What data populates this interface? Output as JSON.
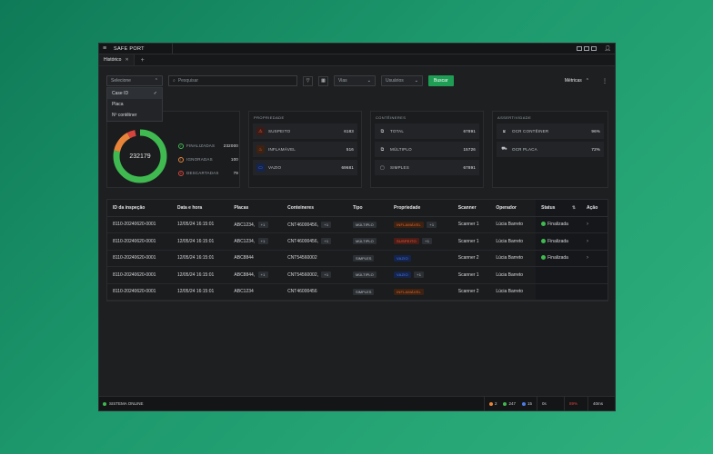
{
  "app": {
    "title": "SAFE PORT"
  },
  "tabs": [
    {
      "label": "Histórico"
    }
  ],
  "toolbar": {
    "select_filter": "Selecione",
    "search_placeholder": "Pesquisar",
    "vias": "Vias",
    "usuarios": "Usuários",
    "buscar": "Buscar",
    "metricas": "Métricas"
  },
  "dropdown": {
    "options": [
      "Case ID",
      "Placa",
      "Nº contêiner"
    ]
  },
  "summary": {
    "total": "232179",
    "finalizadas": {
      "label": "FINALIZADAS",
      "value": "232000"
    },
    "ignoradas": {
      "label": "IGNORADAS",
      "value": "100"
    },
    "descartadas": {
      "label": "DESCARTADAS",
      "value": "79"
    }
  },
  "propriedade": {
    "title": "PROPRIEDADE",
    "rows": [
      {
        "label": "SUSPEITO",
        "value": "6183"
      },
      {
        "label": "INFLAMÁVEL",
        "value": "516"
      },
      {
        "label": "VAZIO",
        "value": "69681"
      }
    ]
  },
  "conteineres": {
    "title": "CONTÊINERES",
    "rows": [
      {
        "label": "TOTAL",
        "value": "67891"
      },
      {
        "label": "MÚLTIPLO",
        "value": "15726"
      },
      {
        "label": "SIMPLES",
        "value": "67891"
      }
    ]
  },
  "assertividade": {
    "title": "ASSERTIVIDADE",
    "rows": [
      {
        "label": "OCR CONTÊINER",
        "value": "96%"
      },
      {
        "label": "OCR PLACA",
        "value": "72%"
      }
    ]
  },
  "table": {
    "headers": [
      "ID da inspeção",
      "Data e hora",
      "Placas",
      "Conteineres",
      "Tipo",
      "Propriedade",
      "Scanner",
      "Operador",
      "Status",
      "Ação"
    ],
    "rows": [
      {
        "id": "8110-20240620-0001",
        "date": "12/05/24 16:15:01",
        "placa": "ABC1234,",
        "placa_extra": "+1",
        "cont": "CNT46000456,",
        "cont_extra": "+1",
        "tipo": "MÚLTIPLO",
        "prop": "INFLAMÁVEL",
        "prop_kind": "flammable",
        "prop_extra": "+1",
        "scanner": "Scanner 1",
        "operador": "Lúcia Barreto",
        "status": "Finalizada"
      },
      {
        "id": "8110-20240620-0001",
        "date": "12/05/24 16:15:01",
        "placa": "ABC1234,",
        "placa_extra": "+1",
        "cont": "CNT46000456,",
        "cont_extra": "+1",
        "tipo": "MÚLTIPLO",
        "prop": "SUSPEITO",
        "prop_kind": "danger",
        "prop_extra": "+1",
        "scanner": "Scanner 1",
        "operador": "Lúcia Barreto",
        "status": "Finalizada"
      },
      {
        "id": "8110-20240620-0001",
        "date": "12/05/24 16:15:01",
        "placa": "ABC8844",
        "placa_extra": "",
        "cont": "CNT54560002",
        "cont_extra": "",
        "tipo": "SIMPLES",
        "prop": "VAZIO",
        "prop_kind": "info",
        "prop_extra": "",
        "scanner": "Scanner 2",
        "operador": "Lúcia Barreto",
        "status": "Finalizada"
      },
      {
        "id": "8110-20240620-0001",
        "date": "12/05/24 16:15:01",
        "placa": "ABC8844,",
        "placa_extra": "+1",
        "cont": "CNT54560002,",
        "cont_extra": "+1",
        "tipo": "MÚLTIPLO",
        "prop": "VAZIO",
        "prop_kind": "info",
        "prop_extra": "+1",
        "scanner": "Scanner 1",
        "operador": "Lúcia Barreto",
        "status": ""
      },
      {
        "id": "8110-20240620-0001",
        "date": "12/05/24 16:15:01",
        "placa": "ABC1234",
        "placa_extra": "",
        "cont": "CNT46000456",
        "cont_extra": "",
        "tipo": "SIMPLES",
        "prop": "INFLAMÁVEL",
        "prop_kind": "flammable",
        "prop_extra": "",
        "scanner": "Scanner 2",
        "operador": "Lúcia Barreto",
        "status": ""
      }
    ]
  },
  "statusbar": {
    "online": "SISTEMA ONLINE",
    "orange_count": "2",
    "green_count": "247",
    "blue_count": "15",
    "s1": "0s",
    "s2": "89%",
    "s3": "40ms"
  },
  "colors": {
    "accent": "#1f9d55",
    "donut_green": "#3fb950",
    "donut_orange": "#e8843a",
    "donut_red": "#d6453d"
  }
}
